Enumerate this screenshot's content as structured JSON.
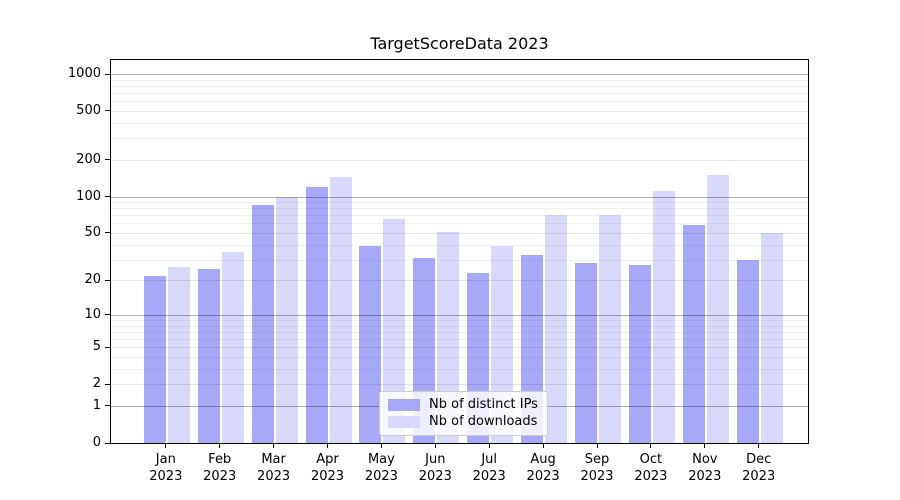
{
  "title": "TargetScoreData 2023",
  "chart_data": {
    "type": "bar",
    "title": "TargetScoreData 2023",
    "categories": [
      "Jan 2023",
      "Feb 2023",
      "Mar 2023",
      "Apr 2023",
      "May 2023",
      "Jun 2023",
      "Jul 2023",
      "Aug 2023",
      "Sep 2023",
      "Oct 2023",
      "Nov 2023",
      "Dec 2023"
    ],
    "series": [
      {
        "name": "Nb of distinct IPs",
        "color": "#a8a8f8",
        "values": [
          22,
          25,
          85,
          120,
          39,
          31,
          23,
          33,
          28,
          27,
          58,
          30
        ]
      },
      {
        "name": "Nb of downloads",
        "color": "#d8d8fa",
        "values": [
          26,
          35,
          100,
          145,
          65,
          51,
          39,
          70,
          70,
          110,
          150,
          50
        ]
      }
    ],
    "xlabel": "",
    "ylabel": "",
    "yscale": "log1p",
    "yticks": [
      0,
      1,
      2,
      5,
      10,
      20,
      50,
      100,
      200,
      500,
      1000
    ],
    "ylim": [
      0,
      1300
    ],
    "grid": true,
    "legend_position": "lower center"
  }
}
